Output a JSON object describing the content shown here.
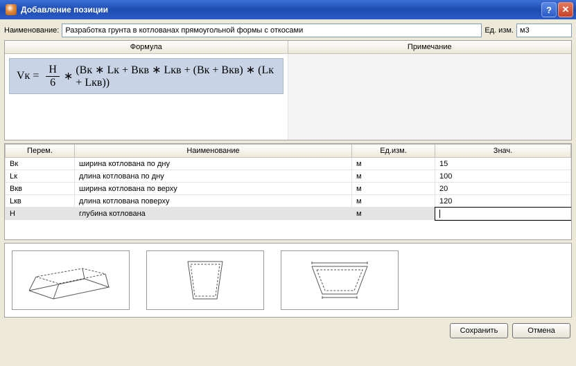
{
  "window": {
    "title": "Добавление позиции"
  },
  "header": {
    "name_label": "Наименование:",
    "name_value": "Разработка грунта в котлованах прямоугольной формы с откосами",
    "unit_label": "Ед. изм.",
    "unit_value": "м3"
  },
  "formula_section": {
    "col_formula": "Формула",
    "col_note": "Примечание",
    "formula": {
      "lhs": "Vк",
      "eq": "=",
      "frac_num": "H",
      "frac_den": "6",
      "mul": "∗",
      "body": "(Bк ∗ Lк + Bкв ∗ Lкв + (Bк + Bкв) ∗ (Lк + Lкв))"
    },
    "note": ""
  },
  "vars_section": {
    "col_var": "Перем.",
    "col_name": "Наименование",
    "col_unit": "Ед.изм.",
    "col_val": "Знач.",
    "rows": [
      {
        "var": "Bк",
        "name": "ширина котлована по дну",
        "unit": "м",
        "val": "15",
        "selected": false
      },
      {
        "var": "Lк",
        "name": "длина котлована по дну",
        "unit": "м",
        "val": "100",
        "selected": false
      },
      {
        "var": "Bкв",
        "name": "ширина котлована по верху",
        "unit": "м",
        "val": "20",
        "selected": false
      },
      {
        "var": "Lкв",
        "name": "длина котлована поверху",
        "unit": "м",
        "val": "120",
        "selected": false
      },
      {
        "var": "H",
        "name": "глубина котлована",
        "unit": "м",
        "val": "",
        "selected": true
      }
    ]
  },
  "buttons": {
    "save": "Сохранить",
    "cancel": "Отмена"
  },
  "colors": {
    "titlebar_grad_top": "#3b6ed5",
    "titlebar_grad_bot": "#2a5cc7",
    "panel_border": "#a0a0a0",
    "input_border": "#7f9db9",
    "formula_bg": "#c8d4e6",
    "body_bg": "#ece9d8"
  }
}
